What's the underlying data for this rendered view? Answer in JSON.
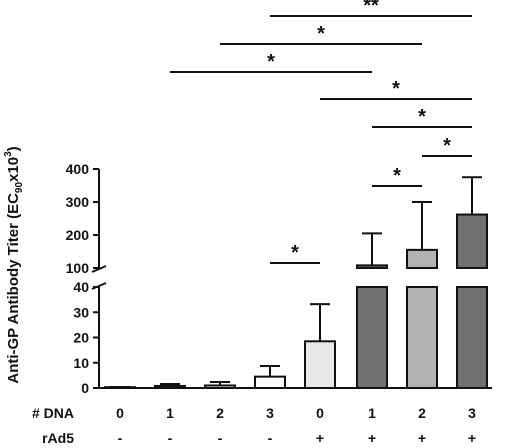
{
  "chart_data": {
    "type": "bar",
    "title": "",
    "ylabel": "Anti-GP Antibody Titer (EC90x10³)",
    "ylabel_parts": {
      "pre": "Anti-GP Antibody Titer (EC",
      "sub": "90",
      "post": "x10",
      "sup": "3",
      "close": ")"
    },
    "y_axis": {
      "broken": true,
      "lower_segment": {
        "range": [
          0,
          40
        ],
        "ticks": [
          "0",
          "10",
          "20",
          "30",
          "40"
        ]
      },
      "upper_segment": {
        "range": [
          100,
          400
        ],
        "ticks": [
          "100",
          "200",
          "300",
          "400"
        ]
      }
    },
    "row_labels": {
      "dna": "# DNA",
      "rad5": "rAd5"
    },
    "categories": [
      {
        "dna": "0",
        "rad5": "-"
      },
      {
        "dna": "1",
        "rad5": "-"
      },
      {
        "dna": "2",
        "rad5": "-"
      },
      {
        "dna": "3",
        "rad5": "-"
      },
      {
        "dna": "0",
        "rad5": "+"
      },
      {
        "dna": "1",
        "rad5": "+"
      },
      {
        "dna": "2",
        "rad5": "+"
      },
      {
        "dna": "3",
        "rad5": "+"
      }
    ],
    "values": [
      0.2,
      0.8,
      1.0,
      4.5,
      18.5,
      108,
      155,
      262
    ],
    "error_upper": [
      0.4,
      1.6,
      2.4,
      8.7,
      33.2,
      205,
      300,
      375
    ],
    "bar_colors": [
      "#ffffff",
      "#ffffff",
      "#ffffff",
      "#ffffff",
      "#e8e8e8",
      "#707070",
      "#b2b2b2",
      "#707070"
    ],
    "significance": [
      {
        "from": 3,
        "to": 4,
        "label": "*"
      },
      {
        "from": 5,
        "to": 6,
        "label": "*"
      },
      {
        "from": 6,
        "to": 7,
        "label": "*"
      },
      {
        "from": 5,
        "to": 7,
        "label": "*"
      },
      {
        "from": 4,
        "to": 7,
        "label": "*"
      },
      {
        "from": 1,
        "to": 5,
        "label": "*"
      },
      {
        "from": 2,
        "to": 6,
        "label": "*"
      },
      {
        "from": 3,
        "to": 7,
        "label": "**"
      }
    ]
  }
}
